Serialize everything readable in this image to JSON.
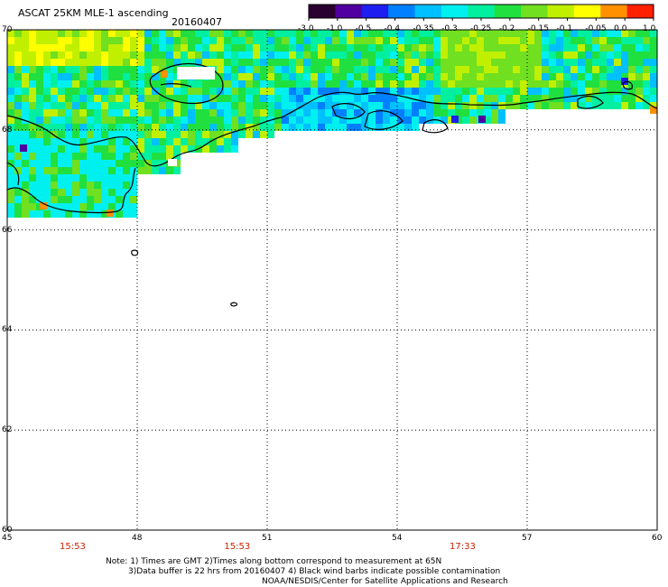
{
  "header": {
    "title": "ASCAT 25KM MLE-1 ascending",
    "date": "20160407"
  },
  "colorbar": {
    "labels": [
      "-3.0",
      "-1.0",
      "-0.5",
      "-0.4",
      "-0.35",
      "-0.3",
      "-0.25",
      "-0.2",
      "-0.15",
      "-0.1",
      "-0.05",
      "0.0",
      "1.0"
    ],
    "colors": [
      "#2a0030",
      "#5000a0",
      "#1e1ef0",
      "#0080ff",
      "#00c0ff",
      "#00f0f0",
      "#00f0a0",
      "#20e040",
      "#70e020",
      "#c0f000",
      "#ffff00",
      "#ff9000",
      "#ff2000"
    ]
  },
  "map": {
    "lat_labels": [
      "70",
      "68",
      "66",
      "64",
      "62",
      "60"
    ],
    "lon_labels": [
      "45",
      "48",
      "51",
      "54",
      "57",
      "60"
    ],
    "lat_range": [
      60,
      70
    ],
    "lon_range": [
      45,
      60
    ],
    "times": [
      {
        "lon": 46.5,
        "label": "15:53"
      },
      {
        "lon": 50.3,
        "label": "15:53"
      },
      {
        "lon": 55.5,
        "label": "17:33"
      }
    ]
  },
  "notes": {
    "line1": "Note: 1) Times are GMT 2)Times along bottom correspond to measurement at 65N",
    "line2": "3)Data buffer is 22 hrs from 20160407 4) Black wind barbs indicate possible contamination",
    "line3": "NOAA/NESDIS/Center for Satellite Applications and Research"
  }
}
